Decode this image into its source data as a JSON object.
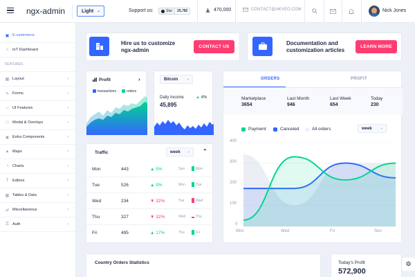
{
  "header": {
    "brand": "ngx-admin",
    "theme": "Light",
    "support_label": "Support us:",
    "github_star": "Star",
    "github_count": "25,782",
    "downloads": "470,000",
    "contact": "CONTACT@AKVEO.COM",
    "user_name": "Nick Jones"
  },
  "sidebar": {
    "items_top": [
      {
        "label": "E-commerce",
        "icon": "cart-icon"
      },
      {
        "label": "IoT Dashboard",
        "icon": "home-icon"
      }
    ],
    "heading": "FEATURES",
    "items": [
      {
        "label": "Layout",
        "icon": "layout-icon"
      },
      {
        "label": "Forms",
        "icon": "edit-icon"
      },
      {
        "label": "UI Features",
        "icon": "keypad-icon"
      },
      {
        "label": "Modal & Overlays",
        "icon": "browser-icon"
      },
      {
        "label": "Extra Components",
        "icon": "message-icon"
      },
      {
        "label": "Maps",
        "icon": "map-icon"
      },
      {
        "label": "Charts",
        "icon": "pie-chart-icon"
      },
      {
        "label": "Editors",
        "icon": "text-icon"
      },
      {
        "label": "Tables & Data",
        "icon": "grid-icon"
      },
      {
        "label": "Miscellaneous",
        "icon": "shuffle-icon"
      },
      {
        "label": "Auth",
        "icon": "lock-icon"
      }
    ]
  },
  "promo": {
    "hire_title_1": "Hire us to customize",
    "hire_title_2": "ngx-admin",
    "hire_button": "CONTACT US",
    "docs_title_1": "Documentation and",
    "docs_title_2": "customization articles",
    "docs_button": "LEARN MORE"
  },
  "profit_card": {
    "title": "Profit",
    "legend_transactions": "transactions",
    "legend_orders": "orders"
  },
  "bitcoin_card": {
    "select": "Bitcoin",
    "daily_income_label": "Daily Income",
    "daily_income_value": "45,895",
    "change": "4%"
  },
  "traffic": {
    "title": "Traffic",
    "period": "week",
    "rows": [
      {
        "day": "Mon",
        "value": "443",
        "delta": "5%",
        "dir": "up",
        "prev": "Sun"
      },
      {
        "day": "Tue",
        "value": "526",
        "delta": "9%",
        "dir": "up",
        "prev": "Mon"
      },
      {
        "day": "Wed",
        "value": "234",
        "delta": "32%",
        "dir": "down",
        "prev": "Tue"
      },
      {
        "day": "Thu",
        "value": "327",
        "delta": "32%",
        "dir": "down",
        "prev": "Wed"
      },
      {
        "day": "Fri",
        "value": "495",
        "delta": "17%",
        "dir": "up",
        "prev": "Thu"
      }
    ]
  },
  "orders": {
    "tab_orders": "ORDERS",
    "tab_profit": "PROFIT",
    "stats": [
      {
        "label": "Marketplace",
        "value": "3654"
      },
      {
        "label": "Last Month",
        "value": "946"
      },
      {
        "label": "Last Week",
        "value": "654"
      },
      {
        "label": "Today",
        "value": "230"
      }
    ],
    "legend": [
      "Payment",
      "Canceled",
      "All orders"
    ],
    "period": "week"
  },
  "chart_data": {
    "type": "line",
    "x": [
      "Mon",
      "Wed",
      "Fri",
      "Sun"
    ],
    "ylim": [
      0,
      400
    ],
    "yticks": [
      "400",
      "300",
      "200",
      "100",
      "0"
    ],
    "series": [
      {
        "name": "Payment",
        "color": "#00d68f",
        "values": [
          30,
          330,
          220,
          300
        ]
      },
      {
        "name": "Canceled",
        "color": "#3366ff",
        "values": [
          180,
          180,
          300,
          230
        ]
      },
      {
        "name": "All orders",
        "color": "#c5cee0",
        "values": [
          340,
          100,
          300,
          300
        ]
      }
    ]
  },
  "country_orders": {
    "title": "Country Orders Statistics"
  },
  "todays_profit": {
    "label": "Today's Profit",
    "value": "572,900"
  }
}
